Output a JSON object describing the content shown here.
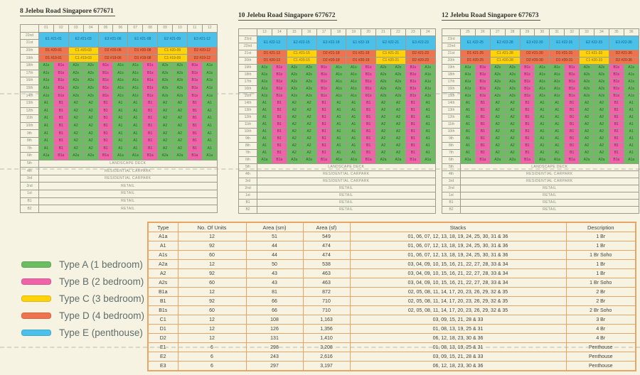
{
  "page": {
    "background": "#F7F3E2"
  },
  "colors": {
    "type_A": "#6CBC62",
    "type_B": "#F163A9",
    "type_C": "#FFD20A",
    "type_D": "#EF734E",
    "type_E": "#4BC1E9",
    "grid_border": "#9C9C8C",
    "table_border": "#E9A564",
    "text_dark": "#3F3F38",
    "label_gray": "#8B8B7D",
    "legend_text": "#5E6E6A",
    "watermark": "#9A9A90"
  },
  "type_suffixes": {
    "soho": "s",
    "garden": "a",
    "standard": ""
  },
  "buildings": [
    {
      "title": "8 Jelebu Road Singapore 677671",
      "stacks": [
        "01",
        "02",
        "03",
        "04",
        "05",
        "06",
        "07",
        "08",
        "09",
        "10",
        "11",
        "12"
      ],
      "penthouse": {
        "floors": [
          "22nd",
          "21st"
        ],
        "units": [
          "E1 #21-01",
          "E2 #21-03",
          "E3 #21-06",
          "E1 #21-08",
          "E2 #21-09",
          "E3 #21-12"
        ]
      },
      "premium_rows": [
        {
          "floor": "20th",
          "units": [
            "D1 #20-01",
            "C1 #20-03",
            "D2 #20-06",
            "D1 #20-08",
            "C1 #20-09",
            "D2 #20-12"
          ]
        },
        {
          "floor": "19th",
          "units": [
            "D1 #19-01",
            "C1 #19-03",
            "D2 #19-06",
            "D1 #19-08",
            "C1 #19-09",
            "D2 #19-12"
          ]
        }
      ],
      "stack_pattern": [
        "A1",
        "B1",
        "A2",
        "A2",
        "B1",
        "A1",
        "A1",
        "B1",
        "A2",
        "A2",
        "B1",
        "A1"
      ],
      "soho_floors": [
        "18th",
        "17th",
        "16th",
        "15th",
        "14th"
      ],
      "standard_floors": [
        "13th",
        "12th",
        "11th",
        "10th",
        "9th",
        "8th",
        "7th"
      ],
      "garden_floor": "6th",
      "facility_rows": [
        {
          "floor": "5th",
          "use": "LANDSCAPE DECK"
        },
        {
          "floor": "4th",
          "use": "RESIDENTIAL CARPARK"
        },
        {
          "floor": "3rd",
          "use": "RESIDENTIAL CARPARK"
        },
        {
          "floor": "2nd",
          "use": "RETAIL"
        },
        {
          "floor": "1st",
          "use": "RETAIL"
        },
        {
          "floor": "B1",
          "use": "RETAIL"
        },
        {
          "floor": "B2",
          "use": "RETAIL"
        }
      ]
    },
    {
      "title": "10 Jelebu Road Singapore 677672",
      "stacks": [
        "13",
        "14",
        "15",
        "16",
        "17",
        "18",
        "19",
        "20",
        "21",
        "22",
        "23",
        "24"
      ],
      "penthouse": {
        "floors": [
          "23rd",
          "22nd"
        ],
        "units": [
          "E1 #22-13",
          "E2 #22-15",
          "E3 #22-18",
          "E1 #22-19",
          "E2 #22-21",
          "E3 #22-23"
        ]
      },
      "premium_rows": [
        {
          "floor": "21st",
          "units": [
            "D1 #21-13",
            "C1 #21-15",
            "D2 #21-18",
            "D1 #21-19",
            "C1 #21-21",
            "D2 #21-23"
          ]
        },
        {
          "floor": "20th",
          "units": [
            "D1 #20-13",
            "C1 #20-15",
            "D2 #20-18",
            "D1 #20-19",
            "C1 #20-21",
            "D2 #20-23"
          ]
        }
      ],
      "stack_pattern": [
        "A1",
        "B1",
        "A2",
        "A2",
        "B1",
        "A1",
        "A1",
        "B1",
        "A2",
        "A2",
        "B1",
        "A1"
      ],
      "soho_floors": [
        "19th",
        "18th",
        "17th",
        "16th",
        "15th"
      ],
      "standard_floors": [
        "14th",
        "13th",
        "12th",
        "11th",
        "10th",
        "9th",
        "8th",
        "7th"
      ],
      "garden_floor": "6th",
      "facility_rows": [
        {
          "floor": "5th",
          "use": "LANDSCAPE DECK"
        },
        {
          "floor": "4th",
          "use": "RESIDENTIAL CARPARK"
        },
        {
          "floor": "3rd",
          "use": "RESIDENTIAL CARPARK"
        },
        {
          "floor": "2nd",
          "use": "RETAIL"
        },
        {
          "floor": "1st",
          "use": "RETAIL"
        },
        {
          "floor": "B1",
          "use": "RETAIL"
        },
        {
          "floor": "B2",
          "use": "RETAIL"
        }
      ]
    },
    {
      "title": "12 Jelebu Road Singapore 677673",
      "stacks": [
        "25",
        "26",
        "27",
        "28",
        "29",
        "30",
        "31",
        "32",
        "33",
        "34",
        "35",
        "36"
      ],
      "penthouse": {
        "floors": [
          "23rd",
          "22nd"
        ],
        "units": [
          "E1 #22-25",
          "E2 #22-28",
          "E3 #22-30",
          "E1 #22-31",
          "E2 #22-33",
          "E3 #22-36"
        ]
      },
      "premium_rows": [
        {
          "floor": "21st",
          "units": [
            "D1 #21-25",
            "C1 #21-28",
            "D2 #21-30",
            "D1 #21-31",
            "C1 #21-33",
            "D2 #21-36"
          ]
        },
        {
          "floor": "20th",
          "units": [
            "D1 #20-25",
            "C1 #20-28",
            "D2 #20-30",
            "D1 #20-31",
            "C1 #20-33",
            "D2 #20-36"
          ]
        }
      ],
      "stack_pattern": [
        "A1",
        "B1",
        "A2",
        "A2",
        "B1",
        "A1",
        "A1",
        "B1",
        "A2",
        "A2",
        "B1",
        "A1"
      ],
      "soho_floors": [
        "19th",
        "18th",
        "17th",
        "16th",
        "15th"
      ],
      "standard_floors": [
        "14th",
        "13th",
        "12th",
        "11th",
        "10th",
        "9th",
        "8th",
        "7th"
      ],
      "garden_floor": "6th",
      "facility_rows": [
        {
          "floor": "5th",
          "use": "LANDSCAPE DECK"
        },
        {
          "floor": "4th",
          "use": "RESIDENTIAL CARPARK"
        },
        {
          "floor": "3rd",
          "use": "RESIDENTIAL CARPARK"
        },
        {
          "floor": "2nd",
          "use": "RETAIL"
        },
        {
          "floor": "1st",
          "use": "RETAIL"
        },
        {
          "floor": "B1",
          "use": "RETAIL"
        },
        {
          "floor": "B2",
          "use": "RETAIL"
        }
      ]
    }
  ],
  "legend": {
    "items": [
      {
        "type": "A",
        "label": "Type A (1 bedroom)",
        "color": "#6CBC62"
      },
      {
        "type": "B",
        "label": "Type B (2 bedroom)",
        "color": "#F163A9"
      },
      {
        "type": "C",
        "label": "Type C (3 bedroom)",
        "color": "#FFD20A"
      },
      {
        "type": "D",
        "label": "Type D (4 bedroom)",
        "color": "#EF734E"
      },
      {
        "type": "E",
        "label": "Type E (penthouse)",
        "color": "#4BC1E9"
      }
    ]
  },
  "unit_table": {
    "headers": [
      "Type",
      "No. Of Units",
      "Area (sm)",
      "Area (sf)",
      "Stacks",
      "Description"
    ],
    "rows": [
      [
        "A1a",
        "12",
        "51",
        "549",
        "01, 06, 07, 12, 13, 18, 19, 24, 25, 30, 31 & 36",
        "1 Br"
      ],
      [
        "A1",
        "92",
        "44",
        "474",
        "01, 06, 07, 12, 13, 18, 19, 24, 25, 30, 31 & 36",
        "1 Br"
      ],
      [
        "A1s",
        "60",
        "44",
        "474",
        "01, 06, 07, 12, 13, 18, 19, 24, 25, 30, 31 & 36",
        "1 Br Soho"
      ],
      [
        "A2a",
        "12",
        "50",
        "538",
        "03, 04, 09, 10, 15, 16, 21, 22, 27, 28, 33 & 34",
        "1 Br"
      ],
      [
        "A2",
        "92",
        "43",
        "463",
        "03, 04, 09, 10, 15, 16, 21, 22, 27, 28, 33 & 34",
        "1 Br"
      ],
      [
        "A2s",
        "60",
        "43",
        "463",
        "03, 04, 09, 10, 15, 16, 21, 22, 27, 28, 33 & 34",
        "1 Br Soho"
      ],
      [
        "B1a",
        "12",
        "81",
        "872",
        "02, 05, 08, 11, 14, 17, 20, 23, 26, 29, 32 & 35",
        "2 Br"
      ],
      [
        "B1",
        "92",
        "66",
        "710",
        "02, 05, 08, 11, 14, 17, 20, 23, 26, 29, 32 & 35",
        "2 Br"
      ],
      [
        "B1s",
        "60",
        "66",
        "710",
        "02, 05, 08, 11, 14, 17, 20, 23, 26, 29, 32 & 35",
        "2 Br Soho"
      ],
      [
        "C1",
        "12",
        "108",
        "1,163",
        "03, 09, 15, 21, 28 & 33",
        "3 Br"
      ],
      [
        "D1",
        "12",
        "126",
        "1,356",
        "01, 08, 13, 19, 25 & 31",
        "4 Br"
      ],
      [
        "D2",
        "12",
        "131",
        "1,410",
        "06, 12, 18, 23, 30 & 36",
        "4 Br"
      ],
      [
        "E1",
        "6",
        "298",
        "3,208",
        "01, 08, 13, 19, 25 & 31",
        "Penthouse"
      ],
      [
        "E2",
        "6",
        "243",
        "2,616",
        "03, 09, 15, 21, 28 & 33",
        "Penthouse"
      ],
      [
        "E3",
        "6",
        "297",
        "3,197",
        "06, 12, 18, 23, 30 & 36",
        "Penthouse"
      ]
    ]
  }
}
